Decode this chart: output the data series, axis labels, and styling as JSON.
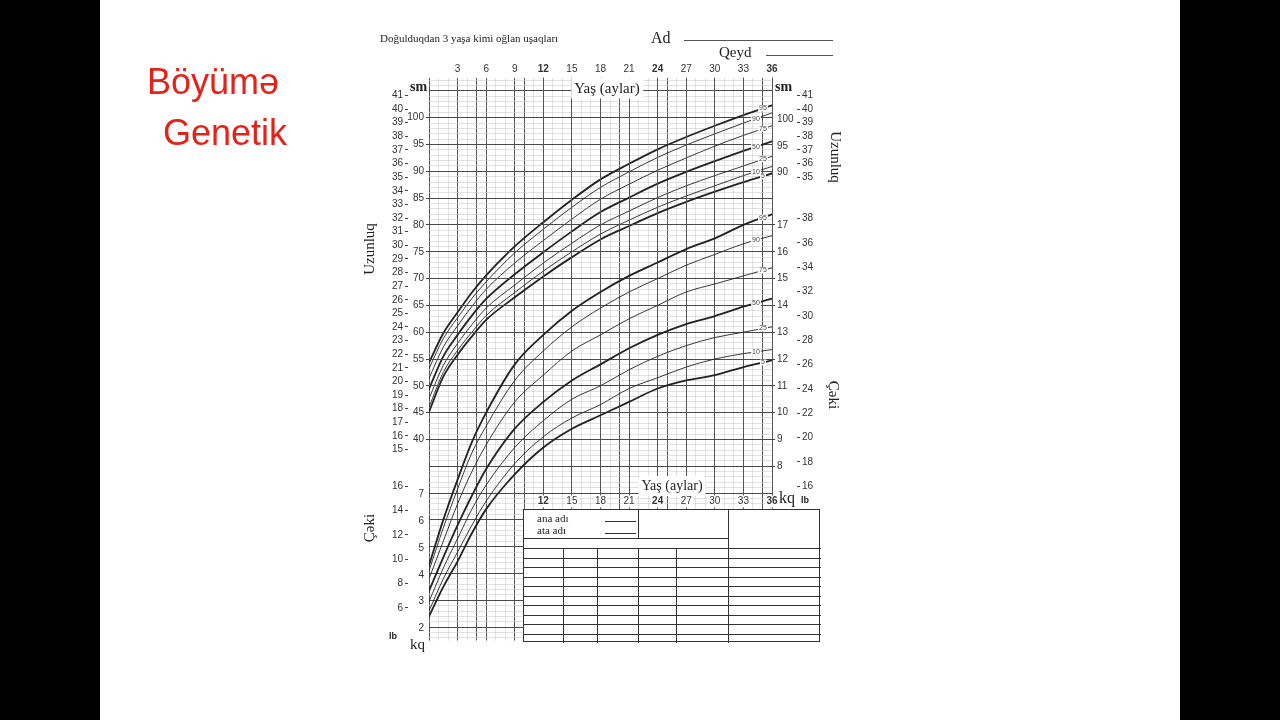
{
  "chart_data": [
    {
      "type": "line",
      "title": "Doğulduqdan 3 yaşa kimi oğlan uşaqları",
      "xlabel": "Yaş (aylar)",
      "ylabel": "Uzunluq",
      "y2label": "Uzunluq",
      "annotations": [
        "Böyümə",
        "Genetik",
        "Ad",
        "Qeyd",
        "sm",
        "sm",
        "100",
        "95",
        "90"
      ],
      "x": [
        0,
        1.5,
        3,
        4.5,
        6,
        9,
        12,
        15,
        18,
        21,
        24,
        27,
        30,
        33,
        36
      ],
      "xlim": [
        0,
        36
      ],
      "xticks": [
        {
          "value": 0,
          "label": null
        },
        {
          "value": 1,
          "label": null
        },
        {
          "value": 2,
          "label": null
        },
        3,
        {
          "value": 4,
          "label": null
        },
        {
          "value": 5,
          "label": null
        },
        6,
        {
          "value": 7,
          "label": null
        },
        {
          "value": 8,
          "label": null
        },
        9,
        {
          "value": 10,
          "label": null
        },
        {
          "value": 11,
          "label": null
        },
        12,
        {
          "value": 13,
          "label": null
        },
        {
          "value": 14,
          "label": null
        },
        15,
        {
          "value": 16,
          "label": null
        },
        {
          "value": 17,
          "label": null
        },
        18,
        {
          "value": 19,
          "label": null
        },
        {
          "value": 20,
          "label": null
        },
        21,
        {
          "value": 22,
          "label": null
        },
        {
          "value": 23,
          "label": null
        },
        24,
        {
          "value": 25,
          "label": null
        },
        {
          "value": 26,
          "label": null
        },
        27,
        {
          "value": 28,
          "label": null
        },
        {
          "value": 29,
          "label": null
        },
        30,
        {
          "value": 31,
          "label": null
        },
        {
          "value": 32,
          "label": null
        },
        33,
        {
          "value": 34,
          "label": null
        },
        {
          "value": 35,
          "label": null
        },
        36
      ],
      "ylim": [
        0.98,
        42.32
      ],
      "yticks": [
        15,
        16,
        17,
        18,
        19,
        20,
        21,
        22,
        23,
        24,
        25,
        26,
        27,
        28,
        29,
        30,
        31,
        32,
        33,
        34,
        35,
        36,
        37,
        38,
        39,
        40,
        41
      ],
      "y2lim": [
        0.98,
        42.32
      ],
      "y2ticks": [
        35,
        36,
        37,
        38,
        39,
        40,
        41
      ],
      "y3lim": [
        2.5,
        107.5
      ],
      "y3ticks": [
        {
          "value": 3,
          "label": null
        },
        {
          "value": 4,
          "label": null
        },
        {
          "value": 5,
          "label": null
        },
        {
          "value": 6,
          "label": null
        },
        {
          "value": 7,
          "label": null
        },
        {
          "value": 8,
          "label": null
        },
        {
          "value": 9,
          "label": null
        },
        {
          "value": 10,
          "label": null
        },
        {
          "value": 11,
          "label": null
        },
        {
          "value": 12,
          "label": null
        },
        {
          "value": 13,
          "label": null
        },
        {
          "value": 14,
          "label": null
        },
        {
          "value": 15,
          "label": null
        },
        {
          "value": 16,
          "label": null
        },
        {
          "value": 17,
          "label": null
        },
        {
          "value": 18,
          "label": null
        },
        {
          "value": 19,
          "label": null
        },
        {
          "value": 20,
          "label": null
        },
        {
          "value": 21,
          "label": null
        },
        {
          "value": 22,
          "label": null
        },
        {
          "value": 23,
          "label": null
        },
        {
          "value": 24,
          "label": null
        },
        {
          "value": 25,
          "label": null
        },
        {
          "value": 26,
          "label": null
        },
        {
          "value": 27,
          "label": null
        },
        {
          "value": 28,
          "label": null
        },
        {
          "value": 29,
          "label": null
        },
        {
          "value": 30,
          "label": null
        },
        {
          "value": 31,
          "label": null
        },
        {
          "value": 32,
          "label": null
        },
        {
          "value": 33,
          "label": null
        },
        {
          "value": 34,
          "label": null
        },
        {
          "value": 36,
          "label": null
        },
        {
          "value": 37,
          "label": null
        },
        {
          "value": 38,
          "label": null
        },
        {
          "value": 39,
          "label": null
        },
        40,
        {
          "value": 41,
          "label": null
        },
        {
          "value": 42,
          "label": null
        },
        {
          "value": 43,
          "label": null
        },
        {
          "value": 44,
          "label": null
        },
        45,
        {
          "value": 46,
          "label": null
        },
        {
          "value": 47,
          "label": null
        },
        {
          "value": 48,
          "label": null
        },
        {
          "value": 49,
          "label": null
        },
        50,
        {
          "value": 51,
          "label": null
        },
        {
          "value": 52,
          "label": null
        },
        {
          "value": 53,
          "label": null
        },
        {
          "value": 54,
          "label": null
        },
        55,
        {
          "value": 56,
          "label": null
        },
        {
          "value": 57,
          "label": null
        },
        {
          "value": 58,
          "label": null
        },
        {
          "value": 59,
          "label": null
        },
        60,
        {
          "value": 61,
          "label": null
        },
        {
          "value": 62,
          "label": null
        },
        {
          "value": 63,
          "label": null
        },
        {
          "value": 64,
          "label": null
        },
        65,
        {
          "value": 66,
          "label": null
        },
        {
          "value": 67,
          "label": null
        },
        {
          "value": 68,
          "label": null
        },
        {
          "value": 69,
          "label": null
        },
        70,
        {
          "value": 71,
          "label": null
        },
        {
          "value": 72,
          "label": null
        },
        {
          "value": 73,
          "label": null
        },
        {
          "value": 74,
          "label": null
        },
        75,
        {
          "value": 76,
          "label": null
        },
        {
          "value": 77,
          "label": null
        },
        {
          "value": 78,
          "label": null
        },
        {
          "value": 79,
          "label": null
        },
        80,
        {
          "value": 81,
          "label": null
        },
        {
          "value": 82,
          "label": null
        },
        {
          "value": 83,
          "label": null
        },
        {
          "value": 84,
          "label": null
        },
        85,
        {
          "value": 86,
          "label": null
        },
        {
          "value": 87,
          "label": null
        },
        {
          "value": 88,
          "label": null
        },
        {
          "value": 89,
          "label": null
        },
        90,
        {
          "value": 91,
          "label": null
        },
        {
          "value": 92,
          "label": null
        },
        {
          "value": 93,
          "label": null
        },
        {
          "value": 94,
          "label": null
        },
        95,
        {
          "value": 96,
          "label": null
        },
        {
          "value": 97,
          "label": null
        },
        {
          "value": 98,
          "label": null
        },
        {
          "value": 99,
          "label": null
        },
        100,
        {
          "value": 101,
          "label": null
        },
        {
          "value": 102,
          "label": null
        },
        {
          "value": 103,
          "label": null
        },
        {
          "value": 104,
          "label": null
        },
        {
          "value": 105,
          "label": null
        },
        {
          "value": 106,
          "label": null
        },
        {
          "value": 107,
          "label": null
        }
      ],
      "grid": true,
      "series": [
        {
          "name": "95",
          "color": "#222222",
          "axis": "y3",
          "values": [
            54.3,
            59.8,
            63.7,
            67.4,
            70.6,
            76.0,
            80.5,
            84.7,
            88.5,
            91.4,
            94.1,
            96.4,
            98.5,
            100.5,
            102.3
          ]
        },
        {
          "name": "90",
          "color": "#222222",
          "axis": "y3",
          "values": [
            53.2,
            58.8,
            62.7,
            66.3,
            69.4,
            74.8,
            79.2,
            83.3,
            87.0,
            89.9,
            92.6,
            94.9,
            97.0,
            99.0,
            100.9
          ]
        },
        {
          "name": "75",
          "color": "#222222",
          "axis": "y3",
          "values": [
            51.4,
            57.2,
            61.2,
            64.8,
            68.0,
            72.9,
            77.1,
            81.1,
            84.8,
            87.6,
            90.2,
            92.5,
            94.7,
            96.7,
            98.5
          ]
        },
        {
          "name": "50",
          "color": "#222222",
          "axis": "y3",
          "values": [
            49.4,
            55.5,
            59.5,
            63.1,
            66.2,
            70.8,
            74.9,
            78.8,
            82.4,
            85.1,
            87.7,
            89.9,
            91.9,
            93.8,
            95.6
          ]
        },
        {
          "name": "25",
          "color": "#222222",
          "axis": "y3",
          "values": [
            47.6,
            53.8,
            57.9,
            61.4,
            64.5,
            68.8,
            72.9,
            76.6,
            80.0,
            82.6,
            85.1,
            87.3,
            89.2,
            91.0,
            92.8
          ]
        },
        {
          "name": "10",
          "color": "#222222",
          "axis": "y3",
          "values": [
            46.0,
            52.5,
            56.6,
            60.0,
            63.1,
            67.4,
            71.4,
            75.0,
            78.3,
            80.9,
            83.3,
            85.4,
            87.3,
            89.2,
            90.9
          ]
        },
        {
          "name": "5",
          "color": "#222222",
          "axis": "y3",
          "values": [
            45.1,
            51.7,
            55.8,
            59.2,
            62.3,
            66.5,
            70.4,
            74.0,
            77.3,
            79.8,
            82.2,
            84.3,
            86.2,
            88.0,
            89.6
          ]
        }
      ]
    },
    {
      "type": "line",
      "xlabel": "Yaş (aylar)",
      "ylabel": "Çəki",
      "y2label": "Çəki",
      "annotations": [
        "kq",
        "kq",
        "lb",
        "lb",
        "ana adı",
        "ata adı",
        "7",
        "6",
        "5",
        "4",
        "3",
        "2"
      ],
      "x": [
        0,
        1.5,
        3,
        4.5,
        6,
        9,
        12,
        15,
        18,
        21,
        24,
        27,
        30,
        33,
        36
      ],
      "xlim": [
        0,
        36
      ],
      "xticks": [
        12,
        15,
        18,
        21,
        24,
        27,
        30,
        33,
        36
      ],
      "ylim": [
        3.31,
        49.6
      ],
      "yticks": [
        6,
        8,
        10,
        12,
        14,
        16
      ],
      "y2lim": [
        3.31,
        49.6
      ],
      "y2ticks": [
        16,
        18,
        20,
        22,
        24,
        26,
        28,
        30,
        32,
        34,
        36,
        38
      ],
      "y3lim": [
        1.5,
        22.5
      ],
      "y3ticks": [
        8,
        9,
        10,
        11,
        12,
        13,
        14,
        15,
        16,
        17
      ],
      "grid": true,
      "series": [
        {
          "name": "95",
          "color": "#222222",
          "axis": "y3",
          "values": [
            4.3,
            6.0,
            7.5,
            8.9,
            10.0,
            11.8,
            12.9,
            13.8,
            14.5,
            15.1,
            15.6,
            16.1,
            16.5,
            17.0,
            17.4
          ]
        },
        {
          "name": "90",
          "color": "#222222",
          "axis": "y3",
          "values": [
            4.1,
            5.7,
            7.15,
            8.5,
            9.5,
            11.2,
            12.3,
            13.2,
            13.9,
            14.5,
            15.0,
            15.5,
            15.9,
            16.3,
            16.6
          ]
        },
        {
          "name": "75",
          "color": "#222222",
          "axis": "y3",
          "values": [
            3.8,
            5.2,
            6.6,
            7.8,
            8.8,
            10.4,
            11.4,
            12.3,
            12.9,
            13.5,
            14.0,
            14.5,
            14.8,
            15.1,
            15.4
          ]
        },
        {
          "name": "50",
          "color": "#222222",
          "axis": "y3",
          "values": [
            3.35,
            4.6,
            5.8,
            6.9,
            7.9,
            9.4,
            10.4,
            11.2,
            11.8,
            12.4,
            12.9,
            13.3,
            13.6,
            13.95,
            14.25
          ]
        },
        {
          "name": "25",
          "color": "#222222",
          "axis": "y3",
          "values": [
            2.95,
            4.2,
            5.3,
            6.4,
            7.3,
            8.7,
            9.7,
            10.5,
            11.0,
            11.6,
            12.1,
            12.5,
            12.8,
            13.0,
            13.2
          ]
        },
        {
          "name": "10",
          "color": "#222222",
          "axis": "y3",
          "values": [
            2.6,
            3.8,
            4.8,
            5.8,
            6.7,
            8.1,
            9.1,
            9.8,
            10.3,
            10.9,
            11.3,
            11.7,
            12.0,
            12.2,
            12.35
          ]
        },
        {
          "name": "5",
          "color": "#222222",
          "axis": "y3",
          "values": [
            2.4,
            3.5,
            4.45,
            5.5,
            6.4,
            7.7,
            8.7,
            9.4,
            9.9,
            10.4,
            10.9,
            11.2,
            11.4,
            11.7,
            11.95
          ]
        }
      ]
    }
  ]
}
